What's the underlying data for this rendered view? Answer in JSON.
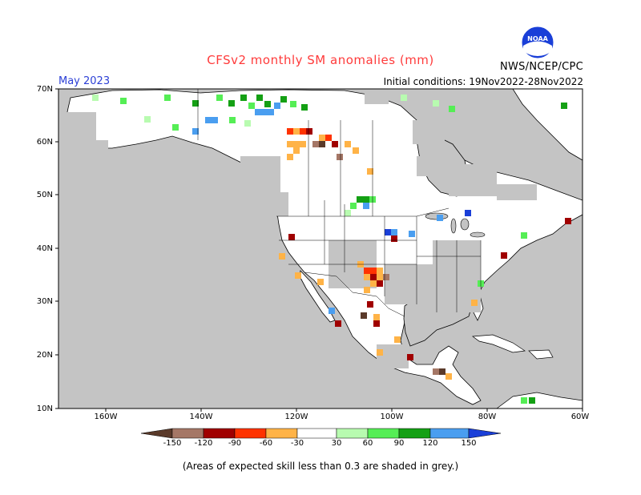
{
  "title": "CFSv2 monthly SM anomalies (mm)",
  "month": "May 2023",
  "agency": "NWS/NCEP/CPC",
  "initial_conditions": "Initial conditions: 19Nov2022-28Nov2022",
  "logo_text": "NOAA",
  "footnote": "(Areas of expected skill less than 0.3 are shaded in grey.)",
  "lat_labels": [
    "70N",
    "60N",
    "50N",
    "40N",
    "30N",
    "20N",
    "10N"
  ],
  "lon_labels": [
    "160W",
    "140W",
    "120W",
    "100W",
    "80W",
    "60W"
  ],
  "colorbar": {
    "ticks": [
      "-150",
      "-120",
      "-90",
      "-60",
      "-30",
      "30",
      "60",
      "90",
      "120",
      "150"
    ],
    "colors": [
      "#5a3a2a",
      "#a57766",
      "#a00000",
      "#ff3300",
      "#ffb347",
      "#ffffff",
      "#b8fbb0",
      "#55ee55",
      "#14a014",
      "#4a9ef0",
      "#1a3fd8"
    ]
  },
  "colors": {
    "grey_mask": "#c4c4c4",
    "land": "#ffffff",
    "coast": "#000000"
  }
}
